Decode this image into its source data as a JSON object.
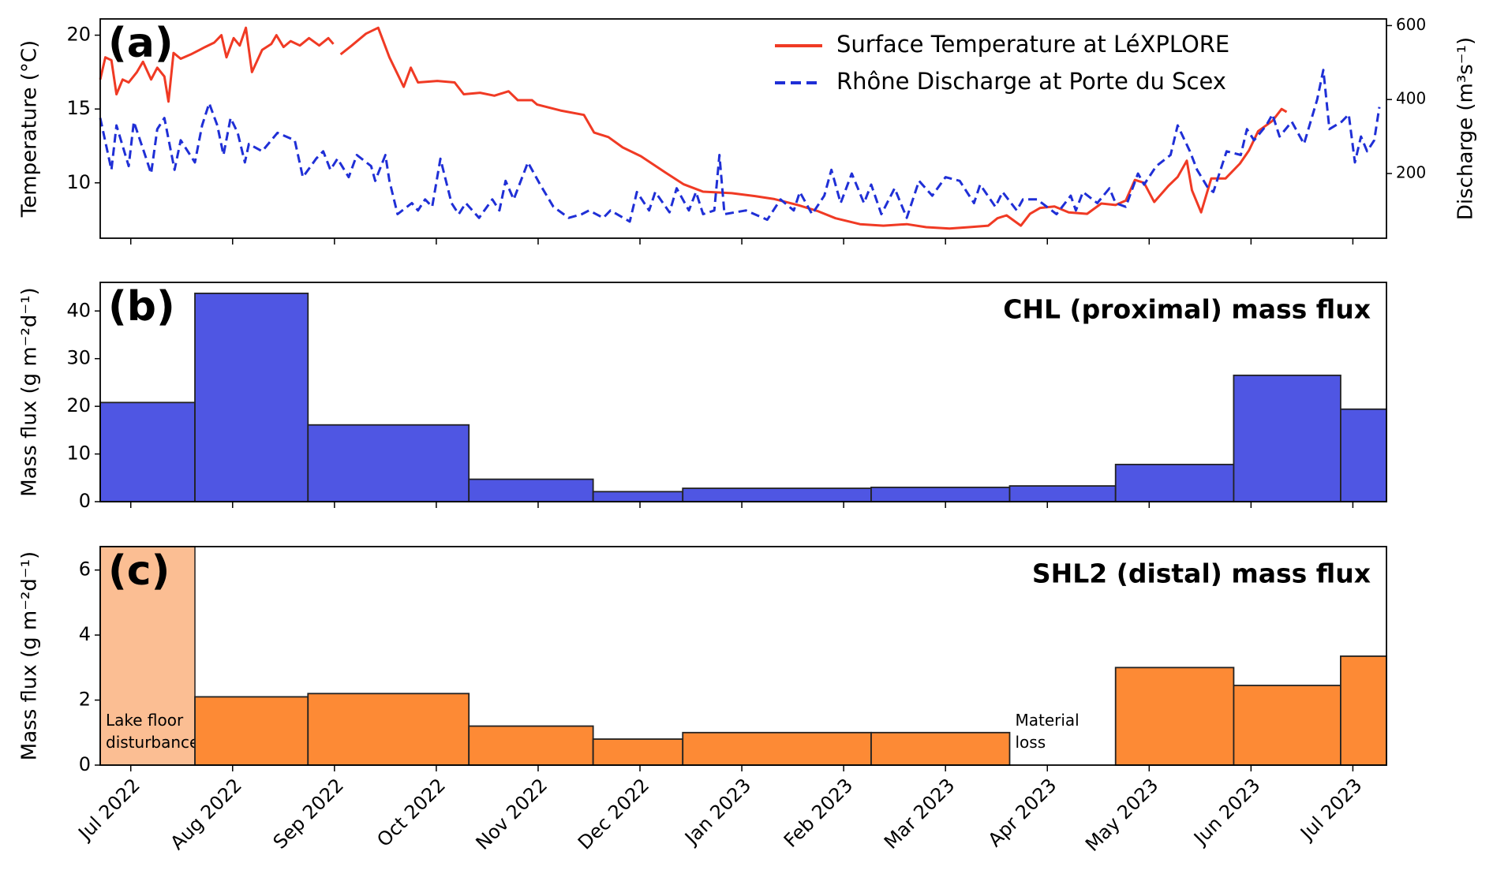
{
  "chart_data": [
    {
      "type": "line",
      "title": "(a)",
      "ylabel": "Temperature (°C)",
      "y2label": "Discharge (m³s⁻¹)",
      "xlim": [
        -0.3,
        12.33
      ],
      "xticks": [
        0,
        1,
        2,
        3,
        4,
        5,
        6,
        7,
        8,
        9,
        10,
        11,
        12
      ],
      "ylim": [
        6.25,
        21.1
      ],
      "yticks": [
        10,
        15,
        20
      ],
      "y2lim": [
        25,
        618
      ],
      "y2ticks": [
        200,
        400,
        600
      ],
      "legend": "upper center",
      "series": [
        {
          "name": "Surface Temperature at LéXPLORE",
          "color": "#f03a24",
          "linestyle": "solid",
          "x": [
            -0.3,
            -0.25,
            -0.19,
            -0.14,
            -0.08,
            -0.02,
            0.06,
            0.12,
            0.2,
            0.26,
            0.33,
            0.37,
            0.42,
            0.49,
            0.59,
            0.73,
            0.82,
            0.89,
            0.94,
            1.01,
            1.07,
            1.13,
            1.19,
            1.29,
            1.38,
            1.43,
            1.5,
            1.57,
            1.66,
            1.75,
            1.85,
            1.94,
            1.99,
            2.02,
            2.06,
            2.17,
            2.31,
            2.43,
            2.54,
            2.68,
            2.75,
            2.82,
            3.01,
            3.18,
            3.27,
            3.43,
            3.57,
            3.71,
            3.8,
            3.94,
            3.99,
            4.22,
            4.45,
            4.55,
            4.69,
            4.83,
            5.01,
            5.25,
            5.43,
            5.62,
            5.9,
            6.13,
            6.32,
            6.55,
            6.74,
            6.92,
            7.16,
            7.39,
            7.62,
            7.81,
            8.04,
            8.23,
            8.42,
            8.51,
            8.6,
            8.74,
            8.83,
            8.93,
            9.07,
            9.21,
            9.39,
            9.53,
            9.67,
            9.77,
            9.86,
            9.95,
            10.05,
            10.19,
            10.28,
            10.37,
            10.42,
            10.51,
            10.61,
            10.75,
            10.89,
            10.98,
            11.07,
            11.21,
            11.3,
            11.35
          ],
          "values": [
            17,
            18.5,
            18.3,
            16,
            17,
            16.8,
            17.5,
            18.2,
            17,
            17.8,
            17.2,
            15.5,
            18.8,
            18.4,
            18.7,
            19.2,
            19.5,
            20,
            18.5,
            19.8,
            19.3,
            20.5,
            17.5,
            19,
            19.4,
            20,
            19.2,
            19.6,
            19.3,
            19.8,
            19.3,
            19.8,
            19.4,
            null,
            18.7,
            19.3,
            20.1,
            20.5,
            18.5,
            16.5,
            17.8,
            16.8,
            16.9,
            16.8,
            16,
            16.1,
            15.9,
            16.2,
            15.6,
            15.6,
            15.3,
            14.9,
            14.6,
            13.4,
            13.1,
            12.4,
            11.8,
            10.7,
            9.9,
            9.4,
            9.3,
            9.1,
            8.9,
            8.5,
            8.1,
            7.6,
            7.2,
            7.1,
            7.2,
            7.0,
            6.9,
            7.0,
            7.1,
            7.6,
            7.8,
            7.1,
            7.9,
            8.3,
            8.4,
            8.0,
            7.9,
            8.6,
            8.5,
            8.8,
            10.2,
            10.0,
            8.7,
            9.8,
            10.4,
            11.5,
            9.5,
            8.0,
            10.3,
            10.3,
            11.3,
            12.2,
            13.5,
            14.2,
            15.0,
            14.8
          ]
        },
        {
          "name": "Rhône Discharge at Porte du Scex",
          "color": "#1f2fd6",
          "linestyle": "dashed",
          "axis": "y2",
          "x": [
            -0.3,
            -0.19,
            -0.14,
            -0.02,
            0.03,
            0.14,
            0.2,
            0.26,
            0.33,
            0.43,
            0.49,
            0.63,
            0.7,
            0.77,
            0.85,
            0.91,
            0.98,
            1.05,
            1.12,
            1.16,
            1.29,
            1.44,
            1.61,
            1.69,
            1.82,
            1.89,
            1.96,
            2.03,
            2.14,
            2.22,
            2.36,
            2.4,
            2.5,
            2.54,
            2.62,
            2.76,
            2.82,
            2.89,
            2.96,
            3.04,
            3.15,
            3.22,
            3.29,
            3.42,
            3.55,
            3.62,
            3.68,
            3.76,
            3.83,
            3.9,
            4.02,
            4.15,
            4.3,
            4.43,
            4.5,
            4.64,
            4.71,
            4.9,
            4.97,
            5.09,
            5.15,
            5.29,
            5.36,
            5.48,
            5.55,
            5.62,
            5.73,
            5.78,
            5.83,
            6.04,
            6.25,
            6.38,
            6.51,
            6.57,
            6.69,
            6.81,
            6.88,
            6.97,
            7.08,
            7.2,
            7.27,
            7.37,
            7.5,
            7.62,
            7.74,
            7.87,
            8.0,
            8.14,
            8.28,
            8.34,
            8.49,
            8.56,
            8.7,
            8.76,
            8.9,
            9.09,
            9.23,
            9.28,
            9.35,
            9.49,
            9.61,
            9.67,
            9.77,
            9.89,
            9.95,
            10.07,
            10.21,
            10.28,
            10.4,
            10.47,
            10.58,
            10.63,
            10.76,
            10.9,
            10.96,
            11.03,
            11.15,
            11.21,
            11.28,
            11.4,
            11.52,
            11.65,
            11.71,
            11.77,
            11.89,
            11.96,
            12.02,
            12.08,
            12.14,
            12.21,
            12.26
          ],
          "values": [
            350,
            210,
            330,
            220,
            340,
            250,
            200,
            320,
            350,
            210,
            290,
            230,
            330,
            390,
            330,
            250,
            350,
            310,
            230,
            280,
            260,
            310,
            290,
            190,
            240,
            260,
            210,
            240,
            190,
            250,
            220,
            180,
            250,
            180,
            90,
            120,
            100,
            130,
            110,
            240,
            120,
            90,
            120,
            80,
            130,
            100,
            180,
            130,
            180,
            230,
            170,
            110,
            80,
            90,
            100,
            80,
            100,
            70,
            150,
            100,
            150,
            95,
            160,
            100,
            150,
            90,
            100,
            250,
            90,
            100,
            75,
            130,
            100,
            150,
            90,
            140,
            210,
            120,
            200,
            120,
            170,
            90,
            160,
            80,
            180,
            140,
            190,
            180,
            120,
            170,
            110,
            150,
            100,
            130,
            130,
            90,
            140,
            100,
            150,
            120,
            160,
            120,
            110,
            200,
            170,
            220,
            250,
            330,
            260,
            210,
            160,
            150,
            260,
            250,
            320,
            290,
            330,
            360,
            300,
            340,
            280,
            400,
            480,
            320,
            340,
            360,
            230,
            300,
            260,
            290,
            380
          ]
        }
      ]
    },
    {
      "type": "histogram",
      "title": "(b)",
      "subtitle": "CHL (proximal) mass flux",
      "ylabel": "Mass flux (g m⁻²d⁻¹)",
      "xlim": [
        -0.3,
        12.33
      ],
      "xticks": [
        0,
        1,
        2,
        3,
        4,
        5,
        6,
        7,
        8,
        9,
        10,
        11,
        12
      ],
      "bins": [
        -0.3,
        0.63,
        1.74,
        3.32,
        4.54,
        5.42,
        7.27,
        8.63,
        9.67,
        10.83,
        11.88,
        12.33
      ],
      "values": [
        20.8,
        43.7,
        16.1,
        4.7,
        2.1,
        2.8,
        3.0,
        3.3,
        7.8,
        26.5,
        19.4
      ],
      "color": "#4f56e3",
      "ylim": [
        0,
        46
      ],
      "yticks": [
        0,
        10,
        20,
        30,
        40
      ]
    },
    {
      "type": "histogram",
      "title": "(c)",
      "subtitle": "SHL2 (distal) mass flux",
      "ylabel": "Mass flux (g m⁻²d⁻¹)",
      "xlim": [
        -0.3,
        12.33
      ],
      "xticks": [
        {
          "value": 0,
          "label": "Jul 2022"
        },
        {
          "value": 1,
          "label": "Aug 2022"
        },
        {
          "value": 2,
          "label": "Sep 2022"
        },
        {
          "value": 3,
          "label": "Oct 2022"
        },
        {
          "value": 4,
          "label": "Nov 2022"
        },
        {
          "value": 5,
          "label": "Dec 2022"
        },
        {
          "value": 6,
          "label": "Jan 2023"
        },
        {
          "value": 7,
          "label": "Feb 2023"
        },
        {
          "value": 8,
          "label": "Mar 2023"
        },
        {
          "value": 9,
          "label": "Apr 2023"
        },
        {
          "value": 10,
          "label": "May 2023"
        },
        {
          "value": 11,
          "label": "Jun 2023"
        },
        {
          "value": 12,
          "label": "Jul 2023"
        }
      ],
      "bins": [
        -0.3,
        0.63,
        1.74,
        3.32,
        4.54,
        5.42,
        7.27,
        8.63,
        9.67,
        10.83,
        11.88,
        12.33
      ],
      "values": [
        null,
        2.1,
        2.2,
        1.2,
        0.8,
        1.0,
        1.0,
        null,
        3.0,
        2.45,
        3.35
      ],
      "bin_labels": [
        "Lake floor disturbance",
        null,
        null,
        null,
        null,
        null,
        null,
        "Material loss",
        null,
        null,
        null
      ],
      "highlight_bins": [
        0
      ],
      "highlight_color": "#fbbe93",
      "color": "#fd8a35",
      "ylim": [
        0,
        6.72
      ],
      "yticks": [
        0,
        2,
        4,
        6
      ]
    }
  ]
}
